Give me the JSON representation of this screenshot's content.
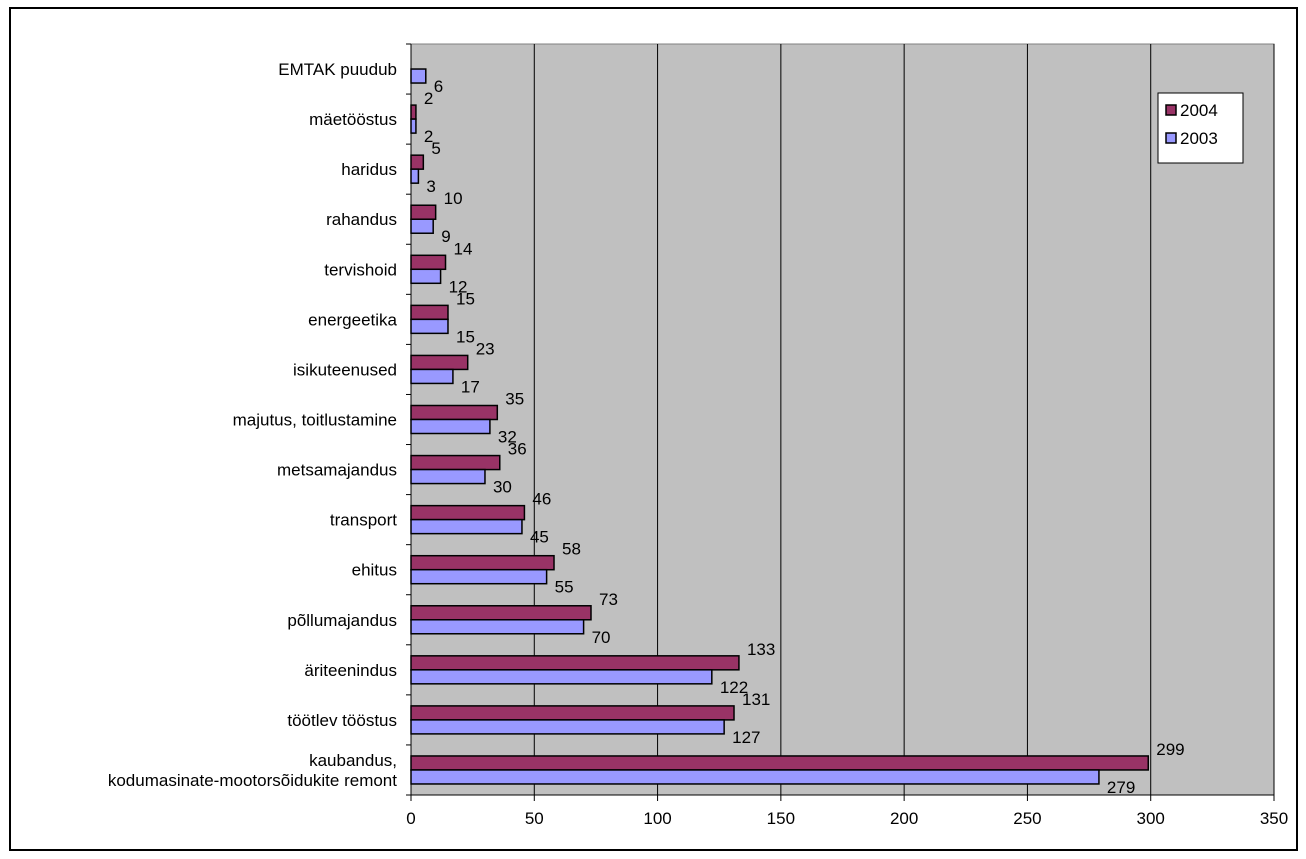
{
  "chart_data": {
    "type": "bar",
    "orientation": "horizontal",
    "categories": [
      "kaubandus,\nkodumasinate-mootorsõidukite remont",
      "töötlev tööstus",
      "äriteenindus",
      "põllumajandus",
      "ehitus",
      "transport",
      "metsamajandus",
      "majutus, toitlustamine",
      "isikuteenused",
      "energeetika",
      "tervishoid",
      "rahandus",
      "haridus",
      "mäetööstus",
      "EMTAK puudub"
    ],
    "series": [
      {
        "name": "2004",
        "values": [
          299,
          131,
          133,
          73,
          58,
          46,
          36,
          35,
          23,
          15,
          14,
          10,
          5,
          2,
          null
        ]
      },
      {
        "name": "2003",
        "values": [
          279,
          127,
          122,
          70,
          55,
          45,
          30,
          32,
          17,
          15,
          12,
          9,
          3,
          2,
          6
        ]
      }
    ],
    "xlim": [
      0,
      350
    ],
    "xticks": [
      0,
      50,
      100,
      150,
      200,
      250,
      300,
      350
    ],
    "grid": "vertical",
    "legend": "top-right",
    "title": "",
    "xlabel": "",
    "ylabel": "",
    "colors": {
      "2004": "#993366",
      "2003": "#9999ff",
      "plot_bg": "#c0c0c0",
      "grid": "#000000"
    }
  }
}
